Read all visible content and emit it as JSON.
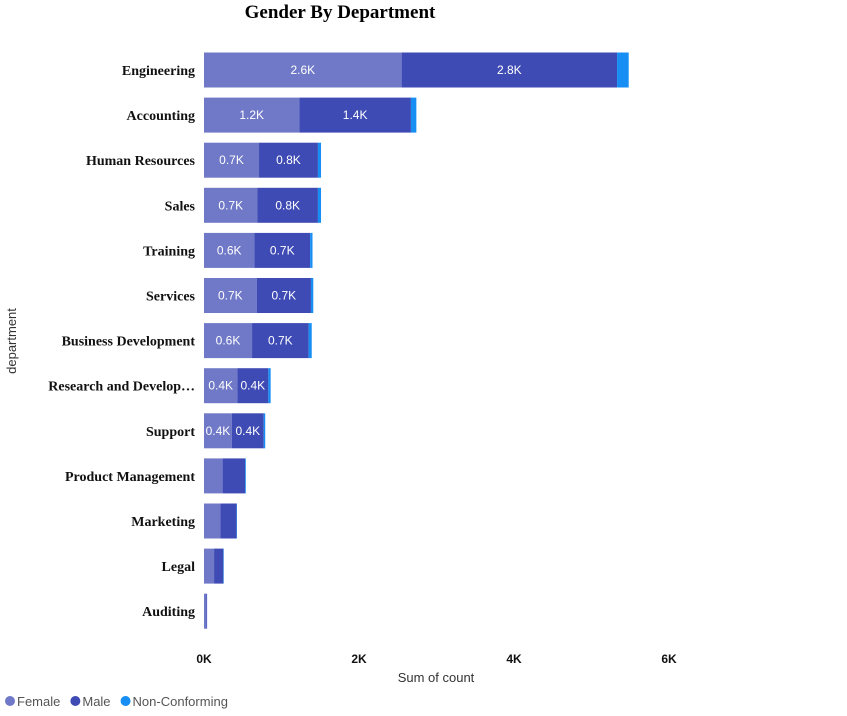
{
  "chart_data": {
    "type": "bar",
    "orientation": "horizontal",
    "stacked": true,
    "title": "Gender By Department",
    "xlabel": "Sum of count",
    "ylabel": "department",
    "xlim": [
      0,
      6000
    ],
    "xticks": [
      {
        "value": 0,
        "label": "0K"
      },
      {
        "value": 2000,
        "label": "2K"
      },
      {
        "value": 4000,
        "label": "4K"
      },
      {
        "value": 6000,
        "label": "6K"
      }
    ],
    "grid": false,
    "legend_position": "bottom-left",
    "categories": [
      "Engineering",
      "Accounting",
      "Human Resources",
      "Sales",
      "Training",
      "Services",
      "Business Development",
      "Research and Develop…",
      "Support",
      "Product Management",
      "Marketing",
      "Legal",
      "Auditing"
    ],
    "series": [
      {
        "name": "Female",
        "color": "#7079c7",
        "values": [
          2550,
          1230,
          710,
          690,
          650,
          680,
          620,
          430,
          360,
          240,
          210,
          130,
          30
        ],
        "labels": [
          "2.6K",
          "1.2K",
          "0.7K",
          "0.7K",
          "0.6K",
          "0.7K",
          "0.6K",
          "0.4K",
          "0.4K",
          "",
          "",
          "",
          ""
        ]
      },
      {
        "name": "Male",
        "color": "#3f4bb4",
        "values": [
          2780,
          1440,
          760,
          780,
          720,
          700,
          730,
          400,
          410,
          290,
          210,
          120,
          10
        ],
        "labels": [
          "2.8K",
          "1.4K",
          "0.8K",
          "0.8K",
          "0.7K",
          "0.7K",
          "0.7K",
          "0.4K",
          "0.4K",
          "",
          "",
          "",
          ""
        ]
      },
      {
        "name": "Non-Conforming",
        "color": "#168ef3",
        "values": [
          150,
          70,
          40,
          40,
          30,
          30,
          40,
          30,
          20,
          10,
          5,
          5,
          0
        ],
        "labels": [
          "",
          "",
          "",
          "",
          "",
          "",
          "",
          "",
          "",
          "",
          "",
          "",
          ""
        ]
      }
    ]
  }
}
